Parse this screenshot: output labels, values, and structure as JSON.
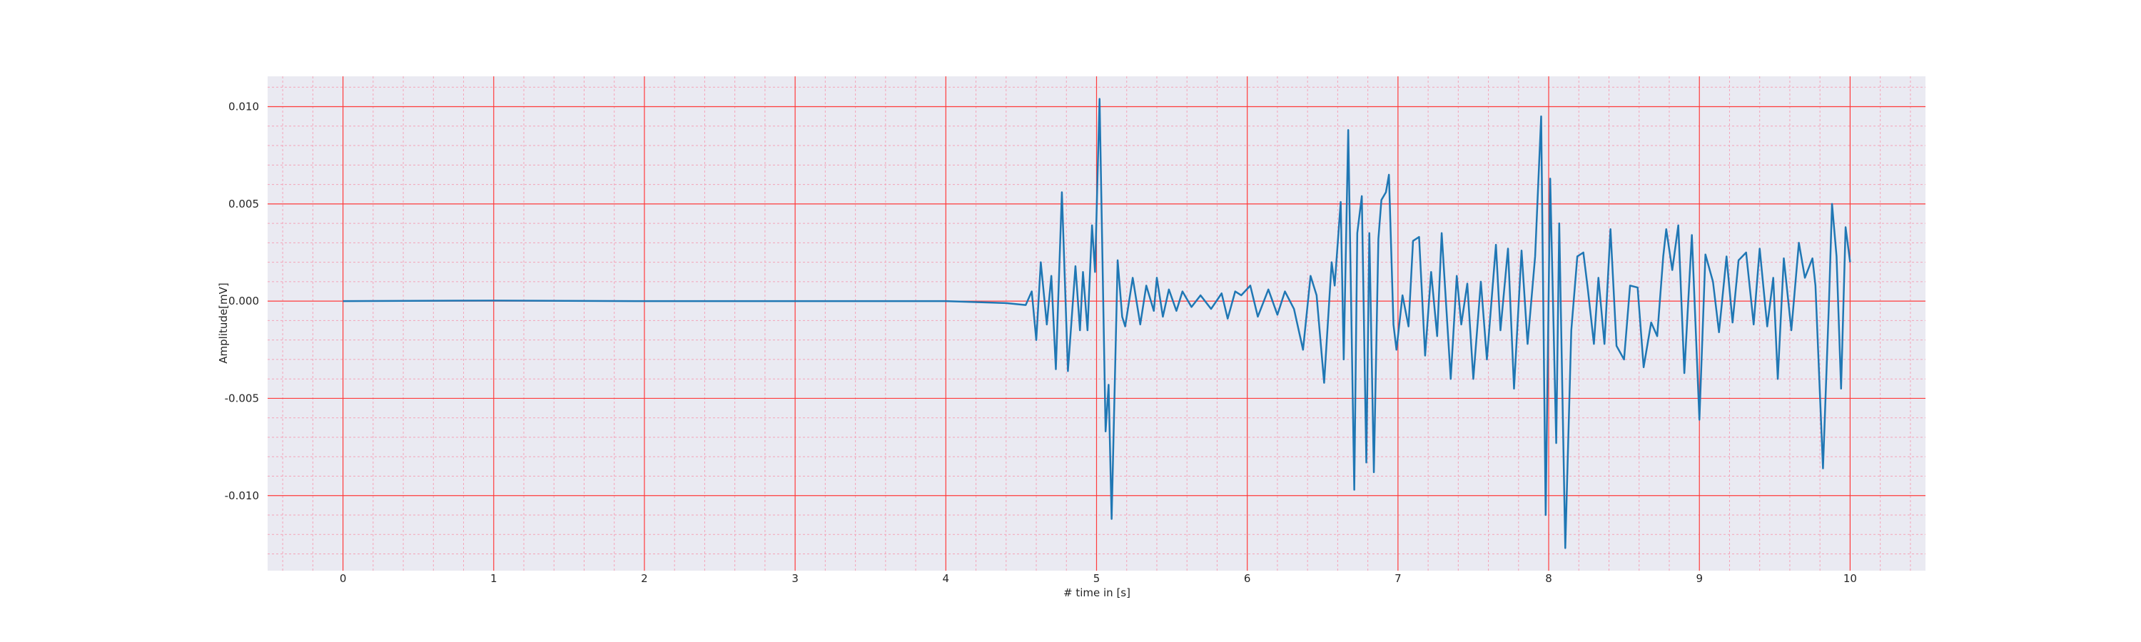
{
  "chart_data": {
    "type": "line",
    "xlabel": "# time in [s]",
    "ylabel": "Amplitude[mV]",
    "color": "#1f77b4",
    "background": "#eaeaf2",
    "grid": true,
    "grid_color": "#ff3b3b",
    "minor_grid": true,
    "minor_grid_color": "#f4a3b8",
    "xlim": [
      -0.5,
      10.5
    ],
    "ylim": [
      -0.01386,
      0.01156
    ],
    "xticks": [
      0,
      1,
      2,
      3,
      4,
      5,
      6,
      7,
      8,
      9,
      10
    ],
    "yticks": [
      {
        "value": -0.01,
        "label": "-0.010"
      },
      {
        "value": -0.005,
        "label": "-0.005"
      },
      {
        "value": 0,
        "label": "0.000"
      },
      {
        "value": 0.005,
        "label": "0.005"
      },
      {
        "value": 0.01,
        "label": "0.010"
      }
    ],
    "x": [
      0,
      1,
      2,
      3,
      4,
      4.4,
      4.53,
      4.57,
      4.6,
      4.63,
      4.67,
      4.7,
      4.73,
      4.77,
      4.81,
      4.86,
      4.89,
      4.91,
      4.94,
      4.97,
      4.99,
      5.02,
      5.06,
      5.08,
      5.1,
      5.14,
      5.17,
      5.19,
      5.24,
      5.29,
      5.33,
      5.38,
      5.4,
      5.44,
      5.48,
      5.53,
      5.57,
      5.63,
      5.69,
      5.76,
      5.83,
      5.87,
      5.92,
      5.96,
      6.02,
      6.07,
      6.14,
      6.2,
      6.25,
      6.31,
      6.37,
      6.42,
      6.46,
      6.51,
      6.56,
      6.58,
      6.62,
      6.64,
      6.67,
      6.71,
      6.73,
      6.76,
      6.79,
      6.81,
      6.84,
      6.87,
      6.89,
      6.92,
      6.94,
      6.97,
      6.99,
      7.03,
      7.07,
      7.1,
      7.14,
      7.18,
      7.22,
      7.26,
      7.29,
      7.35,
      7.39,
      7.42,
      7.46,
      7.5,
      7.55,
      7.59,
      7.65,
      7.68,
      7.73,
      7.77,
      7.82,
      7.86,
      7.91,
      7.95,
      7.98,
      8.01,
      8.05,
      8.07,
      8.11,
      8.15,
      8.19,
      8.23,
      8.26,
      8.3,
      8.33,
      8.37,
      8.41,
      8.45,
      8.5,
      8.54,
      8.59,
      8.63,
      8.68,
      8.72,
      8.76,
      8.78,
      8.82,
      8.86,
      8.9,
      8.95,
      9.0,
      9.04,
      9.09,
      9.13,
      9.18,
      9.22,
      9.26,
      9.31,
      9.36,
      9.4,
      9.45,
      9.49,
      9.52,
      9.56,
      9.61,
      9.66,
      9.7,
      9.75,
      9.77,
      9.82,
      9.86,
      9.88,
      9.91,
      9.94,
      9.97,
      10.0
    ],
    "values": [
      0,
      3e-05,
      0,
      0,
      0,
      -0.0001,
      -0.0002,
      0.0005,
      -0.002,
      0.002,
      -0.0012,
      0.0013,
      -0.0035,
      0.0056,
      -0.0036,
      0.0018,
      -0.0015,
      0.0015,
      -0.0015,
      0.0039,
      0.0015,
      0.0104,
      -0.0067,
      -0.0043,
      -0.0112,
      0.0021,
      -0.0008,
      -0.0013,
      0.0012,
      -0.0012,
      0.0008,
      -0.0005,
      0.0012,
      -0.0008,
      0.0006,
      -0.0005,
      0.0005,
      -0.0003,
      0.0003,
      -0.0004,
      0.0004,
      -0.0009,
      0.0005,
      0.0003,
      0.0008,
      -0.0008,
      0.0006,
      -0.0007,
      0.0005,
      -0.0004,
      -0.0025,
      0.0013,
      0.0003,
      -0.0042,
      0.002,
      0.0008,
      0.0051,
      -0.003,
      0.0088,
      -0.0097,
      0.0035,
      0.0054,
      -0.0083,
      0.0035,
      -0.0088,
      0.0032,
      0.0052,
      0.0056,
      0.0065,
      -0.0012,
      -0.0025,
      0.0003,
      -0.0013,
      0.0031,
      0.0033,
      -0.0028,
      0.0015,
      -0.0018,
      0.0035,
      -0.004,
      0.0013,
      -0.0012,
      0.0009,
      -0.004,
      0.001,
      -0.003,
      0.0029,
      -0.0015,
      0.0027,
      -0.0045,
      0.0026,
      -0.0022,
      0.0023,
      0.0095,
      -0.011,
      0.0063,
      -0.0073,
      0.004,
      -0.0127,
      -0.0015,
      0.0023,
      0.0025,
      0.0006,
      -0.0022,
      0.0012,
      -0.0022,
      0.0037,
      -0.0023,
      -0.003,
      0.0008,
      0.0007,
      -0.0034,
      -0.0011,
      -0.0018,
      0.0023,
      0.0037,
      0.0016,
      0.0039,
      -0.0037,
      0.0034,
      -0.0061,
      0.0024,
      0.001,
      -0.0016,
      0.0023,
      -0.0011,
      0.0021,
      0.0025,
      -0.0012,
      0.0027,
      -0.0013,
      0.0012,
      -0.004,
      0.0022,
      -0.0015,
      0.003,
      0.0012,
      0.0022,
      0.0008,
      -0.0086,
      0,
      0.005,
      0.0023,
      -0.0045,
      0.0038,
      0.002
    ]
  }
}
